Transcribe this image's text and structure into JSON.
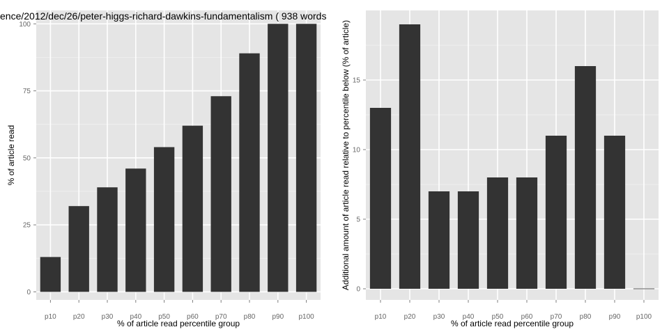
{
  "chart_data": [
    {
      "type": "bar",
      "title": "ence/2012/dec/26/peter-higgs-richard-dawkins-fundamentalism ( 938 words",
      "xlabel": "% of article read percentile group",
      "ylabel": "% of article read",
      "categories": [
        "p10",
        "p20",
        "p30",
        "p40",
        "p50",
        "p60",
        "p70",
        "p80",
        "p90",
        "p100"
      ],
      "values": [
        13,
        32,
        39,
        46,
        54,
        62,
        73,
        89,
        100,
        100
      ],
      "ylim": [
        -3,
        105
      ],
      "yticks": [
        "0",
        "25",
        "50",
        "75",
        "100"
      ],
      "ytick_values": [
        0,
        25,
        50,
        75,
        100
      ],
      "bar_color": "#333333",
      "panel_color": "#e5e5e5",
      "grid": true
    },
    {
      "type": "bar",
      "title": "",
      "xlabel": "% of article read percentile group",
      "ylabel": "Additional amount of article read relative to percentile below (% of article)",
      "categories": [
        "p10",
        "p20",
        "p30",
        "p40",
        "p50",
        "p60",
        "p70",
        "p80",
        "p90",
        "p100"
      ],
      "values": [
        13,
        19,
        7,
        7,
        8,
        8,
        11,
        16,
        11,
        0
      ],
      "ylim": [
        -0.8,
        20
      ],
      "yticks": [
        "0",
        "5",
        "10",
        "15"
      ],
      "ytick_values": [
        0,
        5,
        10,
        15
      ],
      "bar_color": "#333333",
      "panel_color": "#e5e5e5",
      "grid": true
    }
  ]
}
